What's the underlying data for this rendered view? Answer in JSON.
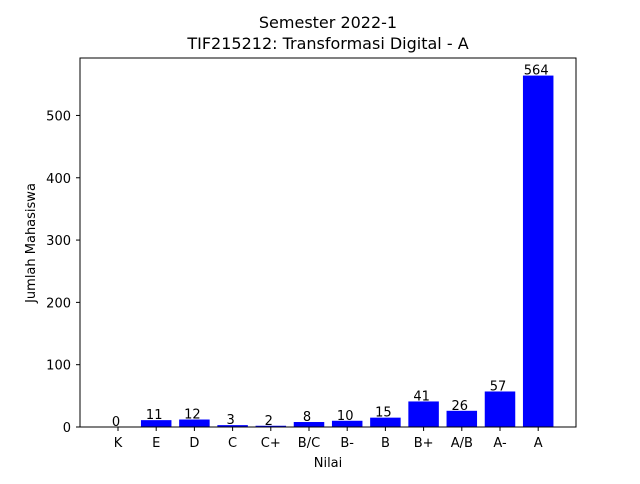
{
  "chart_data": {
    "type": "bar",
    "title": "Semester 2022-1",
    "subtitle": "TIF215212: Transformasi Digital - A",
    "xlabel": "Nilai",
    "ylabel": "Jumlah Mahasiswa",
    "categories": [
      "K",
      "E",
      "D",
      "C",
      "C+",
      "B/C",
      "B-",
      "B",
      "B+",
      "A/B",
      "A-",
      "A"
    ],
    "values": [
      0,
      11,
      12,
      3,
      2,
      8,
      10,
      15,
      41,
      26,
      57,
      564
    ],
    "ylim": [
      0,
      592.2
    ],
    "yticks": [
      0,
      100,
      200,
      300,
      400,
      500
    ],
    "bar_color": "#0000ff",
    "grid": false,
    "legend": "none",
    "data_labels": true
  }
}
